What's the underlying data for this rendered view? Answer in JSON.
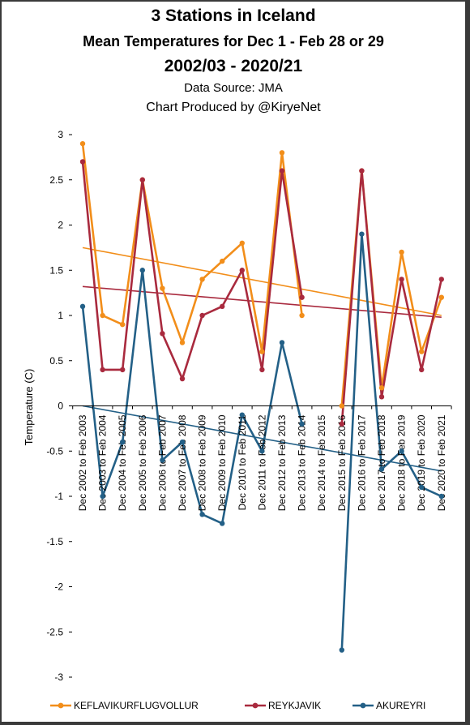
{
  "header": {
    "title": "3 Stations in Iceland",
    "subtitle1": "Mean Temperatures  for Dec 1 - Feb 28 or 29",
    "subtitle2": "2002/03 -  2020/21",
    "source": "Data Source: JMA",
    "producer": "Chart Produced by @KiryeNet"
  },
  "chart_data": {
    "type": "line",
    "title": "3 Stations in Iceland",
    "ylabel": "Temperature (C)",
    "xlabel": "",
    "ylim": [
      -3,
      3
    ],
    "yticks": [
      3,
      2.5,
      2,
      1.5,
      1,
      0.5,
      0,
      -0.5,
      -1,
      -1.5,
      -2,
      -2.5,
      -3
    ],
    "grid": false,
    "legend": "bottom",
    "categories": [
      "Dec 2002 to Feb 2003",
      "Dec 2003 to Feb 2004",
      "Dec 2004 to Feb 2005",
      "Dec 2005 to Feb 2006",
      "Dec 2006 to Feb 2007",
      "Dec 2007 to Feb 2008",
      "Dec 2008 to Feb 2009",
      "Dec 2009 to Feb 2010",
      "Dec 2010 to Feb 2011",
      "Dec 2011 to Feb 2012",
      "Dec 2012 to Feb 2013",
      "Dec 2013 to Feb 2014",
      "Dec 2014 to Feb 2015",
      "Dec 2015 to Feb 2016",
      "Dec 2016 to Feb 2017",
      "Dec 2017 to Feb 2018",
      "Dec 2018 to Feb 2019",
      "Dec 2019 to Feb 2020",
      "Dec 2020 to Feb 2021"
    ],
    "series": [
      {
        "name": "KEFLAVIKURFLUGVOLLUR",
        "color": "#f28e1a",
        "values": [
          2.9,
          1.0,
          0.9,
          2.5,
          1.3,
          0.7,
          1.4,
          1.6,
          1.8,
          0.6,
          2.8,
          1.0,
          null,
          0.0,
          2.6,
          0.2,
          1.7,
          0.6,
          1.2
        ],
        "trend": [
          1.75,
          1.0
        ]
      },
      {
        "name": "REYKJAVIK",
        "color": "#a92a3e",
        "values": [
          2.7,
          0.4,
          0.4,
          2.5,
          0.8,
          0.3,
          1.0,
          1.1,
          1.5,
          0.4,
          2.6,
          1.2,
          null,
          -0.2,
          2.6,
          0.1,
          1.4,
          0.4,
          1.4
        ],
        "trend": [
          1.32,
          0.98
        ]
      },
      {
        "name": "AKUREYRI",
        "color": "#236087",
        "values": [
          1.1,
          -1.0,
          -0.4,
          1.5,
          -0.6,
          -0.4,
          -1.2,
          -1.3,
          -0.1,
          -0.5,
          0.7,
          -0.2,
          null,
          -2.7,
          1.9,
          -0.7,
          -0.5,
          -0.9,
          -1.0
        ],
        "trend": [
          0.0,
          -0.72
        ]
      }
    ]
  }
}
